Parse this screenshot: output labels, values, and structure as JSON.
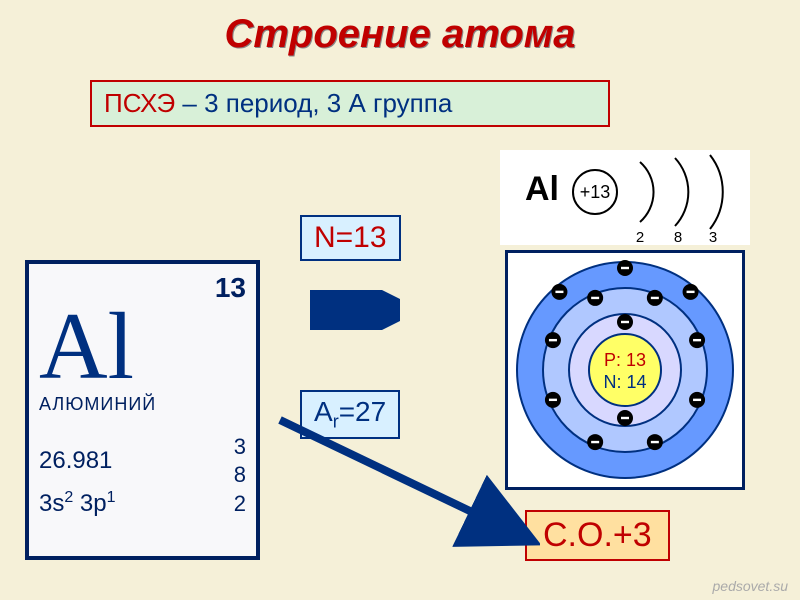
{
  "title": "Строение атома",
  "period_group": {
    "label_red": "ПСХЭ",
    "label_rest": " – 3 период, 3 А группа"
  },
  "n_label": "N=13",
  "ar_label_prefix": "A",
  "ar_label_sub": "r",
  "ar_label_suffix": "=27",
  "co_label": "С.О.+3",
  "pt_card": {
    "atomic_number": "13",
    "symbol": "Al",
    "name": "АЛЮМИНИЙ",
    "mass": "26.981",
    "config_parts": [
      "3s",
      "2",
      " 3p",
      "1"
    ],
    "right_numbers": [
      "3",
      "8",
      "2"
    ]
  },
  "shell_arcs": {
    "symbol": "Al",
    "nucleus_charge": "+13",
    "shell_electrons": [
      "2",
      "8",
      "3"
    ]
  },
  "bohr": {
    "protons_label": "P: 13",
    "neutrons_label": "N: 14",
    "colors": {
      "shell3_fill": "#6699ff",
      "shell2_fill": "#b0c8ff",
      "shell1_fill": "#d8d8ff",
      "nucleus_fill": "#ffff66",
      "ring": "#003080",
      "electron_fill": "#000000",
      "proton_text": "#c00000",
      "neutron_text": "#003080"
    },
    "electrons": {
      "shell1": 2,
      "shell2": 8,
      "shell3": 3
    }
  },
  "arrow_color": "#003080",
  "watermark": "pedsovet.su"
}
